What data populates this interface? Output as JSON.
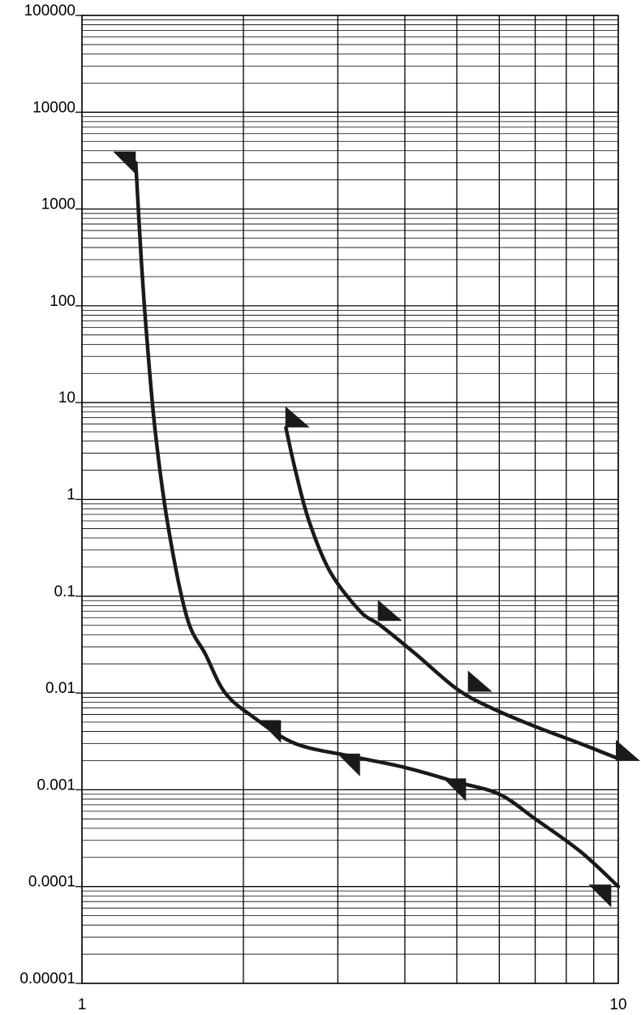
{
  "chart_data": {
    "type": "line",
    "title": "",
    "xlabel": "",
    "ylabel": "",
    "xscale": "log",
    "yscale": "log",
    "xlim": [
      1,
      10
    ],
    "ylim": [
      1e-05,
      100000
    ],
    "grid": true,
    "x_tick_labels": [
      {
        "value": 1,
        "label": "1"
      },
      {
        "value": 10,
        "label": "10"
      }
    ],
    "y_tick_labels": [
      {
        "value": 100000,
        "label": "100000"
      },
      {
        "value": 10000,
        "label": "10000"
      },
      {
        "value": 1000,
        "label": "1000"
      },
      {
        "value": 100,
        "label": "100"
      },
      {
        "value": 10,
        "label": "10"
      },
      {
        "value": 1,
        "label": "1"
      },
      {
        "value": 0.1,
        "label": "0.1"
      },
      {
        "value": 0.01,
        "label": "0.01"
      },
      {
        "value": 0.001,
        "label": "0.001"
      },
      {
        "value": 0.0001,
        "label": "0.0001"
      },
      {
        "value": 1e-05,
        "label": "0.00001"
      }
    ],
    "series": [
      {
        "points": [
          [
            1.26,
            3000
          ],
          [
            1.29,
            300
          ],
          [
            1.32,
            50
          ],
          [
            1.37,
            5
          ],
          [
            1.45,
            0.5
          ],
          [
            1.57,
            0.06
          ],
          [
            1.7,
            0.025
          ],
          [
            1.85,
            0.01
          ],
          [
            2.1,
            0.0055
          ],
          [
            2.5,
            0.003
          ],
          [
            3.2,
            0.0022
          ],
          [
            4.0,
            0.0017
          ],
          [
            5.0,
            0.0012
          ],
          [
            6.0,
            0.0009
          ],
          [
            7.0,
            0.0005
          ],
          [
            8.5,
            0.00023
          ],
          [
            10.0,
            0.0001
          ]
        ],
        "markers": [
          [
            1.26,
            3000
          ],
          [
            2.35,
            0.004
          ],
          [
            3.3,
            0.0018
          ],
          [
            5.2,
            0.001
          ],
          [
            9.7,
            8e-05
          ]
        ]
      },
      {
        "points": [
          [
            2.4,
            5.5
          ],
          [
            2.5,
            2
          ],
          [
            2.65,
            0.6
          ],
          [
            2.9,
            0.18
          ],
          [
            3.3,
            0.07
          ],
          [
            3.6,
            0.05
          ],
          [
            4.2,
            0.025
          ],
          [
            5.0,
            0.011
          ],
          [
            5.8,
            0.007
          ],
          [
            7.0,
            0.0045
          ],
          [
            8.5,
            0.003
          ],
          [
            10.0,
            0.0021
          ]
        ],
        "markers": [
          [
            2.42,
            7
          ],
          [
            3.6,
            0.07
          ],
          [
            5.3,
            0.013
          ],
          [
            10.0,
            0.0025
          ]
        ]
      }
    ]
  }
}
